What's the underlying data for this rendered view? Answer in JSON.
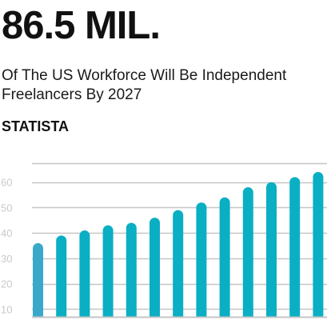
{
  "header": {
    "headline": "86.5 MIL.",
    "subtitle": "Of The US Workforce Will Be Independent Freelancers By 2027",
    "source": "STATISTA"
  },
  "chart_data": {
    "type": "bar",
    "title": "",
    "xlabel": "",
    "ylabel": "",
    "categories": [
      "",
      "",
      "",
      "",
      "",
      "",
      "",
      "",
      "",
      "",
      "",
      "",
      ""
    ],
    "series": [
      {
        "values": [
          36,
          39,
          41,
          43,
          44,
          46,
          49,
          52,
          54,
          58,
          60,
          62,
          64
        ]
      }
    ],
    "highlight_index": 0,
    "y_ticks": [
      10,
      20,
      30,
      40,
      50,
      60
    ],
    "ylim": [
      7,
      64
    ],
    "grid": true,
    "legend": "none",
    "colors": {
      "bar": "#0aafc3",
      "highlight_bar": "#3aa9c9",
      "grid": "#c6c6c6",
      "tick_label": "#c9c9c9"
    }
  }
}
